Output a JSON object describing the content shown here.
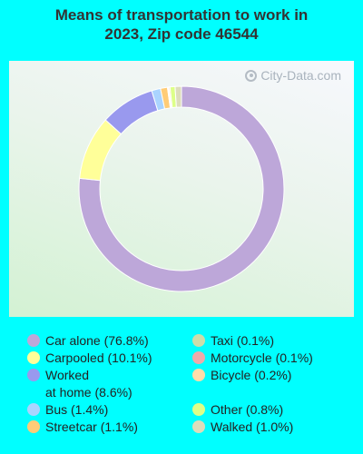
{
  "chart_data": {
    "type": "pie",
    "title_line1": "Means of transportation to work in",
    "title_line2": "2023, Zip code 46544",
    "watermark": "City-Data.com",
    "slices": [
      {
        "label": "Car alone",
        "value": 76.8,
        "color": "#BDA7D9"
      },
      {
        "label": "Carpooled",
        "value": 10.1,
        "color": "#FFFF99"
      },
      {
        "label": "Worked at home",
        "value": 8.6,
        "color": "#9999EE"
      },
      {
        "label": "Bus",
        "value": 1.4,
        "color": "#AAD4FF"
      },
      {
        "label": "Streetcar",
        "value": 1.1,
        "color": "#FFCC77"
      },
      {
        "label": "Taxi",
        "value": 0.1,
        "color": "#CCDDAA"
      },
      {
        "label": "Motorcycle",
        "value": 0.1,
        "color": "#EEAAAA"
      },
      {
        "label": "Bicycle",
        "value": 0.2,
        "color": "#FFDDAA"
      },
      {
        "label": "Other",
        "value": 0.8,
        "color": "#DDFF88"
      },
      {
        "label": "Walked",
        "value": 1.0,
        "color": "#DDDDBB"
      }
    ],
    "legend_labels": [
      "Car alone (76.8%)",
      "Carpooled (10.1%)",
      "Worked\nat home (8.6%)",
      "Bus (1.4%)",
      "Streetcar (1.1%)",
      "Taxi (0.1%)",
      "Motorcycle (0.1%)",
      "Bicycle (0.2%)",
      "Other (0.8%)",
      "Walked (1.0%)"
    ]
  }
}
